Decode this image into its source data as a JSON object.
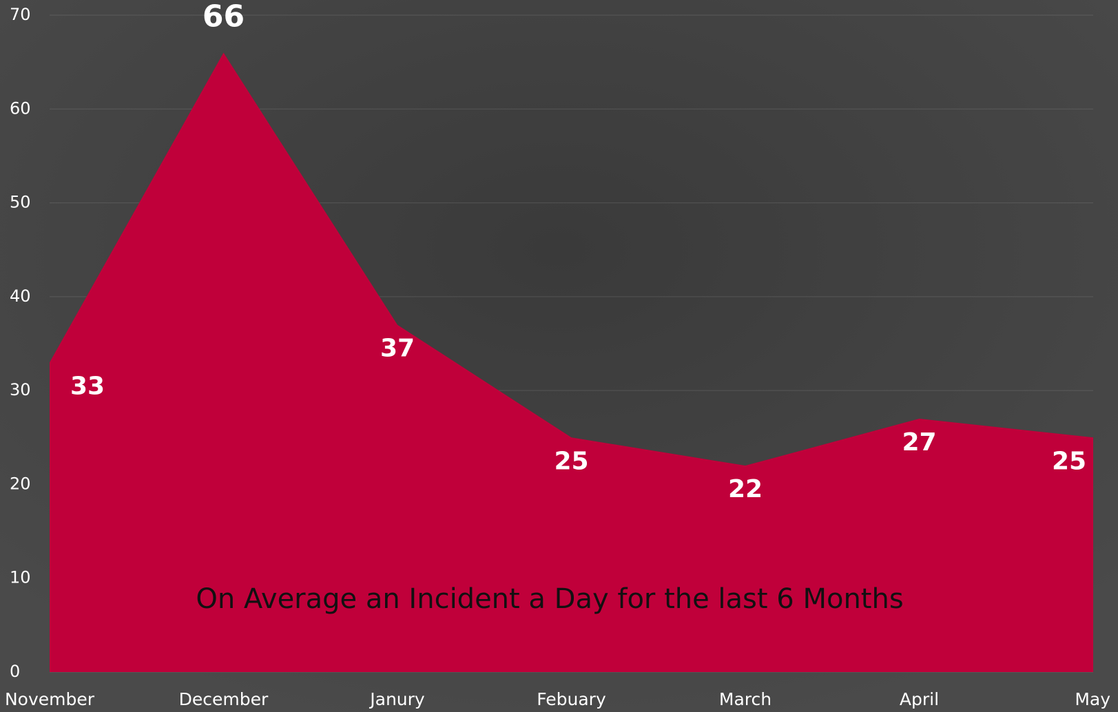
{
  "chart_data": {
    "type": "area",
    "categories": [
      "November",
      "December",
      "Janury",
      "Febuary",
      "March",
      "April",
      "May"
    ],
    "values": [
      33,
      66,
      37,
      25,
      22,
      27,
      25
    ],
    "color": "#c0003a",
    "ylim": [
      0,
      70
    ],
    "yticks": [
      0,
      10,
      20,
      30,
      40,
      50,
      60,
      70
    ],
    "grid": true,
    "annotation": "On Average an Incident a Day for the last 6 Months"
  }
}
